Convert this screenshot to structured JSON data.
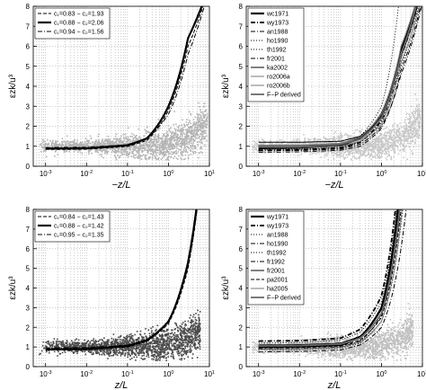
{
  "chart_data": [
    {
      "type": "scatter",
      "xscale": "log",
      "xlim": [
        0.0005,
        10
      ],
      "ylim": [
        0,
        8
      ],
      "xlabel": "−z/L",
      "ylabel": "εzk/u³",
      "x_ticks": [
        "10⁻³",
        "10⁻²",
        "10⁻¹",
        "10⁰",
        "10¹"
      ],
      "y_ticks": [
        "0",
        "1",
        "2",
        "3",
        "4",
        "5",
        "6",
        "7",
        "8"
      ],
      "grid": true,
      "legend_position": "top-left",
      "legend": [
        "c₁=0.83 − c₂=1.93",
        "c₁=0.88 − c₂=2.06",
        "c₁=0.94 − c₂=1.56"
      ],
      "series": [
        {
          "name": "c₁=0.83 − c₂=1.93",
          "style": "dashed",
          "c1": 0.83,
          "c2": 1.93,
          "curve": [
            [
              0.001,
              0.84
            ],
            [
              0.01,
              0.85
            ],
            [
              0.1,
              0.99
            ],
            [
              0.3,
              1.3
            ],
            [
              1,
              2.8
            ],
            [
              3,
              6.0
            ],
            [
              7,
              8.0
            ]
          ]
        },
        {
          "name": "c₁=0.88 − c₂=2.06",
          "style": "solid-thick",
          "c1": 0.88,
          "c2": 2.06,
          "curve": [
            [
              0.001,
              0.88
            ],
            [
              0.01,
              0.9
            ],
            [
              0.1,
              1.05
            ],
            [
              0.3,
              1.4
            ],
            [
              1,
              3.0
            ],
            [
              3,
              6.4
            ],
            [
              6.5,
              8.0
            ]
          ]
        },
        {
          "name": "c₁=0.94 − c₂=1.56",
          "style": "dashdot",
          "c1": 0.94,
          "c2": 1.56,
          "curve": [
            [
              0.001,
              0.94
            ],
            [
              0.01,
              0.95
            ],
            [
              0.1,
              1.08
            ],
            [
              0.3,
              1.4
            ],
            [
              1,
              2.6
            ],
            [
              3,
              5.6
            ],
            [
              7.5,
              8.0
            ]
          ]
        }
      ],
      "scatter": {
        "x_range": [
          0.0007,
          9
        ],
        "y_center": 1.0,
        "color": "#b4b4b4"
      }
    },
    {
      "type": "line",
      "xscale": "log",
      "xlim": [
        0.0005,
        10
      ],
      "ylim": [
        0,
        8
      ],
      "xlabel": "−z/L",
      "ylabel": "εzk/u³",
      "x_ticks": [
        "10⁻³",
        "10⁻²",
        "10⁻¹",
        "10⁰",
        "10¹"
      ],
      "y_ticks": [
        "0",
        "1",
        "2",
        "3",
        "4",
        "5",
        "6",
        "7",
        "8"
      ],
      "grid": true,
      "legend_position": "top-left",
      "legend": [
        "wc1971",
        "wy1973",
        "an1988",
        "ho1990",
        "th1992",
        "fr2001",
        "ka2002",
        "ro2006a",
        "ro2006b",
        "F−P derived"
      ],
      "series": [
        {
          "name": "wc1971",
          "style": "solid-thick",
          "curve": [
            [
              0.001,
              0.9
            ],
            [
              0.01,
              0.93
            ],
            [
              0.1,
              1.05
            ],
            [
              0.3,
              1.4
            ],
            [
              1,
              2.6
            ],
            [
              3,
              5.8
            ],
            [
              7,
              8.0
            ]
          ]
        },
        {
          "name": "wy1973",
          "style": "dashdot-thick",
          "curve": [
            [
              0.001,
              0.8
            ],
            [
              0.01,
              0.82
            ],
            [
              0.1,
              0.92
            ],
            [
              0.3,
              1.2
            ],
            [
              1,
              2.3
            ],
            [
              3,
              5.5
            ],
            [
              7.5,
              8.0
            ]
          ]
        },
        {
          "name": "an1988",
          "style": "dashdot",
          "curve": [
            [
              0.001,
              0.7
            ],
            [
              0.01,
              0.72
            ],
            [
              0.1,
              0.8
            ],
            [
              0.3,
              1.0
            ],
            [
              1,
              1.9
            ],
            [
              3,
              4.8
            ],
            [
              9,
              8.0
            ]
          ]
        },
        {
          "name": "ho1990",
          "style": "dotted",
          "curve": [
            [
              0.001,
              1.0
            ],
            [
              0.01,
              1.0
            ],
            [
              0.1,
              1.1
            ],
            [
              0.3,
              1.5
            ],
            [
              1,
              3.0
            ],
            [
              2.6,
              8.0
            ]
          ]
        },
        {
          "name": "th1992",
          "style": "dotted",
          "curve": [
            [
              0.001,
              0.85
            ],
            [
              0.01,
              0.86
            ],
            [
              0.1,
              0.95
            ],
            [
              0.3,
              1.2
            ],
            [
              1,
              2.2
            ],
            [
              3,
              5.0
            ],
            [
              8,
              8.0
            ]
          ]
        },
        {
          "name": "fr2001",
          "style": "dashdot",
          "curve": [
            [
              0.001,
              0.78
            ],
            [
              0.01,
              0.79
            ],
            [
              0.1,
              0.86
            ],
            [
              0.3,
              1.1
            ],
            [
              1,
              2.0
            ],
            [
              3,
              4.6
            ],
            [
              9.5,
              8.0
            ]
          ]
        },
        {
          "name": "ka2002",
          "style": "solid",
          "curve": [
            [
              0.001,
              1.2
            ],
            [
              0.01,
              1.2
            ],
            [
              0.1,
              1.25
            ],
            [
              0.3,
              1.5
            ],
            [
              1,
              2.5
            ],
            [
              3,
              5.5
            ],
            [
              7.5,
              8.0
            ]
          ]
        },
        {
          "name": "ro2006a",
          "style": "solid-gray",
          "curve": [
            [
              0.001,
              1.05
            ],
            [
              0.01,
              1.05
            ],
            [
              0.1,
              1.15
            ],
            [
              0.3,
              1.45
            ],
            [
              1,
              2.6
            ],
            [
              3,
              6.0
            ],
            [
              6.5,
              8.0
            ]
          ]
        },
        {
          "name": "ro2006b",
          "style": "solid-gray",
          "curve": [
            [
              0.001,
              0.95
            ],
            [
              0.01,
              0.95
            ],
            [
              0.1,
              1.0
            ],
            [
              0.3,
              1.25
            ],
            [
              1,
              2.1
            ],
            [
              3,
              5.2
            ],
            [
              8.5,
              8.0
            ]
          ]
        },
        {
          "name": "F−P derived",
          "style": "solid-gray-thick",
          "curve": [
            [
              0.001,
              1.0
            ],
            [
              0.01,
              1.02
            ],
            [
              0.1,
              1.1
            ],
            [
              0.3,
              1.35
            ],
            [
              1,
              2.4
            ],
            [
              3,
              5.6
            ],
            [
              7,
              8.0
            ]
          ]
        }
      ],
      "scatter": {
        "x_range": [
          0.0007,
          9
        ],
        "y_center": 1.0,
        "color": "#c8c8c8"
      }
    },
    {
      "type": "scatter",
      "xscale": "log",
      "xlim": [
        0.0005,
        10
      ],
      "ylim": [
        0,
        8
      ],
      "xlabel": "z/L",
      "ylabel": "εzk/u³",
      "x_ticks": [
        "10⁻³",
        "10⁻²",
        "10⁻¹",
        "10⁰",
        "10¹"
      ],
      "y_ticks": [
        "0",
        "1",
        "2",
        "3",
        "4",
        "5",
        "6",
        "7",
        "8"
      ],
      "grid": true,
      "legend_position": "top-left",
      "legend": [
        "c₁=0.84 − c₂=1.43",
        "c₁=0.88 − c₂=1.42",
        "c₁=0.95 − c₂=1.35"
      ],
      "series": [
        {
          "name": "c₁=0.84 − c₂=1.43",
          "style": "dashed",
          "c1": 0.84,
          "c2": 1.43,
          "curve": [
            [
              0.001,
              0.84
            ],
            [
              0.01,
              0.86
            ],
            [
              0.1,
              1.0
            ],
            [
              0.3,
              1.3
            ],
            [
              1,
              2.2
            ],
            [
              3,
              5.0
            ],
            [
              5,
              8.0
            ]
          ]
        },
        {
          "name": "c₁=0.88 − c₂=1.42",
          "style": "solid-thick",
          "c1": 0.88,
          "c2": 1.42,
          "curve": [
            [
              0.001,
              0.88
            ],
            [
              0.01,
              0.9
            ],
            [
              0.1,
              1.05
            ],
            [
              0.3,
              1.35
            ],
            [
              1,
              2.3
            ],
            [
              3,
              5.3
            ],
            [
              4.8,
              8.0
            ]
          ]
        },
        {
          "name": "c₁=0.95 − c₂=1.35",
          "style": "dashdot",
          "c1": 0.95,
          "c2": 1.35,
          "curve": [
            [
              0.001,
              0.95
            ],
            [
              0.01,
              0.97
            ],
            [
              0.1,
              1.1
            ],
            [
              0.3,
              1.38
            ],
            [
              1,
              2.3
            ],
            [
              3,
              5.1
            ],
            [
              5,
              8.0
            ]
          ]
        }
      ],
      "scatter": {
        "x_range": [
          0.0007,
          6
        ],
        "y_center": 1.0,
        "color": "#4a4a4a"
      }
    },
    {
      "type": "line",
      "xscale": "log",
      "xlim": [
        0.0005,
        10
      ],
      "ylim": [
        0,
        8
      ],
      "xlabel": "z/L",
      "ylabel": "εzk/u³",
      "x_ticks": [
        "10⁻³",
        "10⁻²",
        "10⁻¹",
        "10⁰",
        "10¹"
      ],
      "y_ticks": [
        "0",
        "1",
        "2",
        "3",
        "4",
        "5",
        "6",
        "7",
        "8"
      ],
      "grid": true,
      "legend_position": "top-left",
      "legend": [
        "wy1971",
        "wy1973",
        "an1988",
        "ho1990",
        "th1992",
        "fr1992",
        "fr2001",
        "pa2001",
        "ha2005",
        "F−P derived"
      ],
      "series": [
        {
          "name": "wy1971",
          "style": "solid-thick",
          "curve": [
            [
              0.001,
              1.0
            ],
            [
              0.01,
              1.02
            ],
            [
              0.1,
              1.1
            ],
            [
              0.3,
              1.5
            ],
            [
              1,
              3.0
            ],
            [
              2.5,
              8.0
            ]
          ]
        },
        {
          "name": "wy1973",
          "style": "dashdot-thick",
          "curve": [
            [
              0.001,
              1.3
            ],
            [
              0.01,
              1.32
            ],
            [
              0.1,
              1.45
            ],
            [
              0.3,
              1.9
            ],
            [
              1,
              3.6
            ],
            [
              2.2,
              8.0
            ]
          ]
        },
        {
          "name": "an1988",
          "style": "dotted",
          "curve": [
            [
              0.001,
              1.2
            ],
            [
              0.01,
              1.22
            ],
            [
              0.1,
              1.35
            ],
            [
              0.3,
              1.75
            ],
            [
              1,
              3.3
            ],
            [
              2.3,
              8.0
            ]
          ]
        },
        {
          "name": "ho1990",
          "style": "dashdot",
          "curve": [
            [
              0.001,
              0.9
            ],
            [
              0.01,
              0.92
            ],
            [
              0.1,
              1.0
            ],
            [
              0.3,
              1.3
            ],
            [
              1,
              2.6
            ],
            [
              2.9,
              8.0
            ]
          ]
        },
        {
          "name": "th1992",
          "style": "dotted",
          "curve": [
            [
              0.001,
              0.85
            ],
            [
              0.01,
              0.87
            ],
            [
              0.1,
              0.95
            ],
            [
              0.3,
              1.2
            ],
            [
              1,
              2.3
            ],
            [
              3.3,
              8.0
            ]
          ]
        },
        {
          "name": "fr1992",
          "style": "dashdot",
          "curve": [
            [
              0.001,
              0.75
            ],
            [
              0.01,
              0.77
            ],
            [
              0.1,
              0.85
            ],
            [
              0.3,
              1.1
            ],
            [
              1,
              2.0
            ],
            [
              4,
              8.0
            ]
          ]
        },
        {
          "name": "fr2001",
          "style": "solid",
          "curve": [
            [
              0.001,
              1.1
            ],
            [
              0.01,
              1.12
            ],
            [
              0.1,
              1.2
            ],
            [
              0.3,
              1.55
            ],
            [
              1,
              2.9
            ],
            [
              2.6,
              8.0
            ]
          ]
        },
        {
          "name": "pa2001",
          "style": "dashed",
          "curve": [
            [
              0.001,
              0.95
            ],
            [
              0.01,
              0.97
            ],
            [
              0.1,
              1.05
            ],
            [
              0.3,
              1.35
            ],
            [
              1,
              2.5
            ],
            [
              3,
              8.0
            ]
          ]
        },
        {
          "name": "ha2005",
          "style": "solid-gray",
          "curve": [
            [
              0.001,
              0.88
            ],
            [
              0.01,
              0.9
            ],
            [
              0.1,
              0.98
            ],
            [
              0.3,
              1.25
            ],
            [
              1,
              2.3
            ],
            [
              3.2,
              8.0
            ]
          ]
        },
        {
          "name": "F−P derived",
          "style": "solid-gray-thick",
          "curve": [
            [
              0.001,
              1.05
            ],
            [
              0.01,
              1.07
            ],
            [
              0.1,
              1.15
            ],
            [
              0.3,
              1.45
            ],
            [
              1,
              2.7
            ],
            [
              2.8,
              8.0
            ]
          ]
        }
      ],
      "scatter": {
        "x_range": [
          0.0007,
          6
        ],
        "y_center": 1.0,
        "color": "#c0c0c0"
      }
    }
  ]
}
